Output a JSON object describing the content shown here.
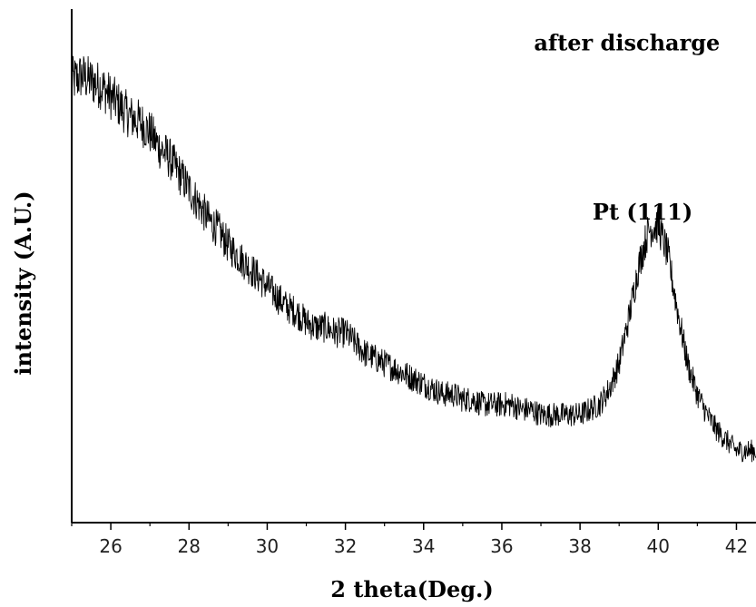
{
  "chart_data": {
    "type": "line",
    "title": "",
    "xlabel": "2 theta(Deg.)",
    "ylabel": "intensity (A.U.)",
    "xlim": [
      25,
      42.5
    ],
    "ylim": [
      0,
      100
    ],
    "y_tick_labels_shown": false,
    "grid": false,
    "legend": "none",
    "x_ticks": [
      26,
      28,
      30,
      32,
      34,
      36,
      38,
      40,
      42
    ],
    "annotations": [
      {
        "text": "after discharge",
        "x": 39.2,
        "y": 92
      },
      {
        "text": "Pt (111)",
        "x": 39.6,
        "y": 59
      }
    ],
    "series": [
      {
        "color": "#000000",
        "x": [
          25.0,
          25.25,
          25.5,
          25.75,
          26.0,
          26.25,
          26.5,
          26.75,
          27.0,
          27.25,
          27.5,
          27.75,
          28.0,
          28.25,
          28.5,
          28.75,
          29.0,
          29.25,
          29.5,
          29.75,
          30.0,
          30.25,
          30.5,
          30.75,
          31.0,
          31.25,
          31.5,
          31.75,
          32.0,
          32.25,
          32.5,
          32.75,
          33.0,
          33.25,
          33.5,
          33.75,
          34.0,
          34.25,
          34.5,
          34.75,
          35.0,
          35.25,
          35.5,
          35.75,
          36.0,
          36.25,
          36.5,
          36.75,
          37.0,
          37.25,
          37.5,
          37.75,
          38.0,
          38.25,
          38.5,
          38.75,
          39.0,
          39.25,
          39.5,
          39.75,
          40.0,
          40.25,
          40.5,
          40.75,
          41.0,
          41.25,
          41.5,
          41.75,
          42.0,
          42.25,
          42.5
        ],
        "y": [
          86,
          87,
          86,
          85,
          83,
          81,
          79,
          78,
          76,
          73,
          71,
          68,
          65,
          62,
          59,
          57,
          54,
          52,
          50,
          48,
          46,
          44,
          42,
          41,
          39,
          38,
          38,
          37,
          37,
          35,
          33,
          32,
          31,
          30,
          29,
          28,
          27,
          26,
          25,
          25,
          24,
          24,
          23,
          23,
          23,
          23,
          22,
          22,
          21,
          21,
          21,
          21,
          21,
          22,
          23,
          26,
          31,
          40,
          50,
          57,
          58,
          52,
          41,
          31,
          25,
          21,
          18,
          16,
          14,
          14,
          14
        ]
      }
    ]
  }
}
